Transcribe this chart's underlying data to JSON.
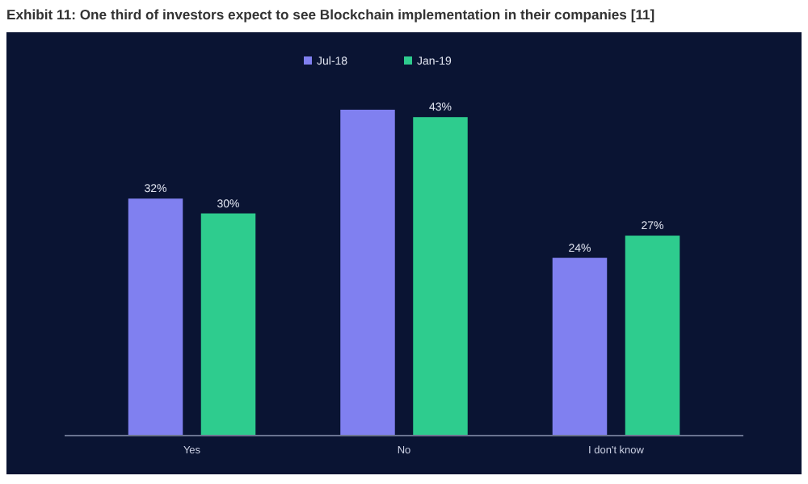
{
  "chart_data": {
    "type": "bar",
    "title": "Exhibit 11: One third of investors expect to see Blockchain implementation in their companies [11]",
    "categories": [
      "Yes",
      "No",
      "I don't know"
    ],
    "series": [
      {
        "name": "Jul-18",
        "color": "#8080f0",
        "values": [
          32,
          44,
          24
        ],
        "value_labels": [
          "32%",
          null,
          "24%"
        ]
      },
      {
        "name": "Jan-19",
        "color": "#2ecc8e",
        "values": [
          30,
          43,
          27
        ],
        "value_labels": [
          "30%",
          "43%",
          "27%"
        ]
      }
    ],
    "legend": "top"
  }
}
